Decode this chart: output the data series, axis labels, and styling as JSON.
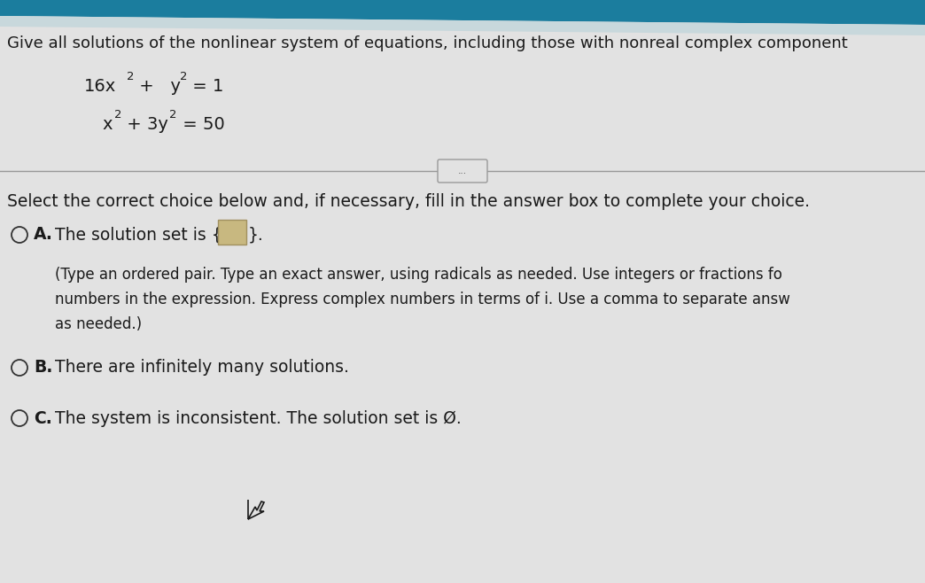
{
  "bg_color": "#e2e2e2",
  "header_color": "#1b7d9e",
  "title_text": "Give all solutions of the nonlinear system of equations, including those with nonreal complex component",
  "eq1_base": "16x",
  "eq1_sup1": "2",
  "eq1_plus": " +   y",
  "eq1_sup2": "2",
  "eq1_eq": " = 1",
  "eq2_base": "x",
  "eq2_sup1": "2",
  "eq2_plus": " + 3y",
  "eq2_sup2": "2",
  "eq2_eq": " = 50",
  "dots_label": "...",
  "select_text": "Select the correct choice below and, if necessary, fill in the answer box to complete your choice.",
  "optA_label": "A.",
  "optA_main": "The solution set is {",
  "optA_close": "}.",
  "optA_box_face": "#c8b880",
  "optA_box_edge": "#a09060",
  "optA_sub1": "(Type an ordered pair. Type an exact answer, using radicals as needed. Use integers or fractions fo",
  "optA_sub2": "numbers in the expression. Express complex numbers in terms of i. Use a comma to separate answ",
  "optA_sub3": "as needed.)",
  "optB_label": "B.",
  "optB_text": "There are infinitely many solutions.",
  "optC_label": "C.",
  "optC_text": "The system is inconsistent. The solution set is Ø.",
  "font_color": "#1a1a1a",
  "circle_color": "#333333",
  "line_color": "#999999",
  "title_fontsize": 13.0,
  "eq_fontsize": 14.0,
  "eq_sup_fontsize": 9.5,
  "label_fontsize": 13.5,
  "sub_fontsize": 12.0,
  "select_fontsize": 13.5
}
